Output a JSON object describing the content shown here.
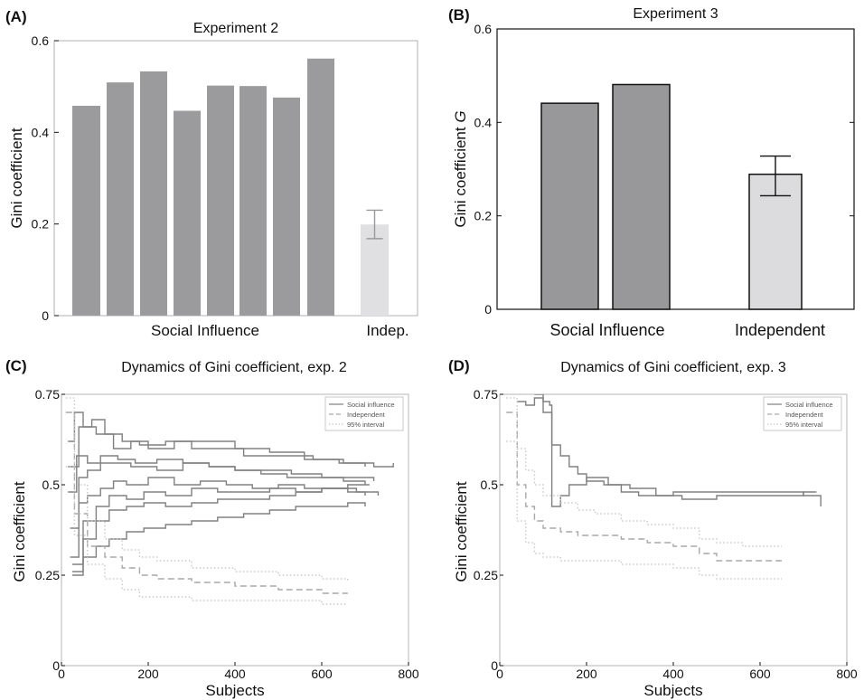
{
  "chart_data": [
    {
      "panel": "(A)",
      "type": "bar",
      "title": "Experiment 2",
      "ylabel": "Gini coefficient",
      "ylim": [
        0,
        0.6
      ],
      "yticks": [
        0,
        0.2,
        0.4,
        0.6
      ],
      "ytick_labels": [
        "0",
        "0.2",
        "0.4",
        "0.6"
      ],
      "group_labels": [
        "Social Influence",
        "Indep."
      ],
      "series": [
        {
          "name": "Social Influence",
          "values": [
            0.458,
            0.509,
            0.533,
            0.447,
            0.502,
            0.501,
            0.476,
            0.561
          ],
          "color": "#9b9b9e"
        },
        {
          "name": "Indep.",
          "values": [
            0.199
          ],
          "error_low": [
            0.168
          ],
          "error_high": [
            0.23
          ],
          "color": "#e0e0e3"
        }
      ],
      "grid": false,
      "frame_color": "#b0b0b0"
    },
    {
      "panel": "(B)",
      "type": "bar",
      "title": "Experiment 3",
      "ylabel": "Gini coefficient G",
      "ylim": [
        0,
        0.6
      ],
      "yticks": [
        0,
        0.2,
        0.4,
        0.6
      ],
      "ytick_labels": [
        "0",
        "0.2",
        "0.4",
        "0.6"
      ],
      "group_labels": [
        "Social Influence",
        "Independent"
      ],
      "series": [
        {
          "name": "Social Influence",
          "values": [
            0.441,
            0.481
          ],
          "color": "#98989b"
        },
        {
          "name": "Independent",
          "values": [
            0.289
          ],
          "error_low": [
            0.243
          ],
          "error_high": [
            0.328
          ],
          "color": "#dcdcdf"
        }
      ],
      "grid": false,
      "frame_color": "#111111"
    },
    {
      "panel": "(C)",
      "type": "line",
      "title": "Dynamics of Gini coefficient, exp. 2",
      "xlabel": "Subjects",
      "ylabel": "Gini coefficient",
      "xlim": [
        0,
        800
      ],
      "ylim": [
        0,
        0.75
      ],
      "xticks": [
        0,
        200,
        400,
        600,
        800
      ],
      "yticks": [
        0,
        0.25,
        0.5,
        0.75
      ],
      "ytick_labels": [
        "0",
        "0.25",
        "0.5",
        "0.75"
      ],
      "legend": [
        "Social influence",
        "Independent",
        "95% interval"
      ],
      "legend_position": "top-right",
      "series": [
        {
          "name": "Social influence",
          "style": "solid",
          "x": [
            15,
            30,
            50,
            80,
            120,
            160,
            200,
            260,
            320,
            400,
            480,
            560,
            640,
            700
          ],
          "y": [
            0.62,
            0.7,
            0.66,
            0.64,
            0.6,
            0.62,
            0.6,
            0.62,
            0.62,
            0.6,
            0.59,
            0.57,
            0.56,
            0.55
          ]
        },
        {
          "name": "Social influence",
          "style": "solid",
          "x": [
            15,
            40,
            70,
            100,
            140,
            180,
            240,
            300,
            360,
            420,
            500,
            580,
            650,
            720,
            765
          ],
          "y": [
            0.55,
            0.66,
            0.68,
            0.64,
            0.62,
            0.61,
            0.62,
            0.6,
            0.6,
            0.58,
            0.58,
            0.57,
            0.56,
            0.55,
            0.56
          ]
        },
        {
          "name": "Social influence",
          "style": "solid",
          "x": [
            15,
            35,
            60,
            90,
            130,
            170,
            220,
            280,
            340,
            400,
            460,
            530,
            600,
            660,
            720
          ],
          "y": [
            0.48,
            0.58,
            0.56,
            0.58,
            0.57,
            0.56,
            0.57,
            0.56,
            0.55,
            0.54,
            0.54,
            0.53,
            0.52,
            0.52,
            0.51
          ]
        },
        {
          "name": "Social influence",
          "style": "solid",
          "x": [
            20,
            40,
            60,
            90,
            120,
            160,
            220,
            280,
            340,
            400,
            460,
            520,
            580,
            650,
            700
          ],
          "y": [
            0.38,
            0.52,
            0.54,
            0.56,
            0.56,
            0.55,
            0.54,
            0.56,
            0.55,
            0.54,
            0.53,
            0.52,
            0.52,
            0.51,
            0.5
          ]
        },
        {
          "name": "Social influence",
          "style": "solid",
          "x": [
            20,
            40,
            60,
            90,
            120,
            150,
            200,
            260,
            320,
            380,
            440,
            500,
            560,
            620,
            680,
            730
          ],
          "y": [
            0.3,
            0.45,
            0.47,
            0.49,
            0.51,
            0.5,
            0.52,
            0.5,
            0.51,
            0.5,
            0.49,
            0.5,
            0.49,
            0.49,
            0.48,
            0.47
          ]
        },
        {
          "name": "Social influence",
          "style": "solid",
          "x": [
            25,
            50,
            80,
            110,
            150,
            190,
            240,
            300,
            360,
            420,
            480,
            540,
            600,
            660,
            700
          ],
          "y": [
            0.28,
            0.4,
            0.44,
            0.47,
            0.46,
            0.48,
            0.47,
            0.49,
            0.48,
            0.48,
            0.49,
            0.48,
            0.49,
            0.48,
            0.47
          ]
        },
        {
          "name": "Social influence",
          "style": "solid",
          "x": [
            25,
            50,
            80,
            110,
            150,
            190,
            240,
            300,
            360,
            420,
            480,
            540,
            600,
            660,
            710
          ],
          "y": [
            0.26,
            0.35,
            0.4,
            0.43,
            0.44,
            0.45,
            0.44,
            0.45,
            0.46,
            0.46,
            0.47,
            0.48,
            0.49,
            0.5,
            0.5
          ]
        },
        {
          "name": "Social influence",
          "style": "solid",
          "x": [
            25,
            50,
            80,
            110,
            150,
            190,
            240,
            300,
            360,
            420,
            480,
            540,
            600,
            660,
            700
          ],
          "y": [
            0.25,
            0.3,
            0.33,
            0.35,
            0.37,
            0.38,
            0.39,
            0.4,
            0.41,
            0.42,
            0.43,
            0.44,
            0.44,
            0.45,
            0.44
          ]
        },
        {
          "name": "Independent",
          "style": "dashed",
          "x": [
            10,
            30,
            60,
            100,
            140,
            180,
            220,
            300,
            400,
            500,
            600,
            660
          ],
          "y": [
            0.7,
            0.42,
            0.33,
            0.3,
            0.27,
            0.25,
            0.24,
            0.23,
            0.22,
            0.21,
            0.2,
            0.2
          ]
        },
        {
          "name": "95% interval",
          "style": "dotted",
          "x": [
            10,
            30,
            60,
            100,
            140,
            180,
            220,
            300,
            400,
            500,
            600,
            660
          ],
          "y": [
            0.74,
            0.5,
            0.4,
            0.35,
            0.32,
            0.3,
            0.29,
            0.27,
            0.26,
            0.25,
            0.24,
            0.23
          ]
        },
        {
          "name": "95% interval",
          "style": "dotted",
          "x": [
            10,
            30,
            60,
            100,
            140,
            180,
            220,
            300,
            400,
            500,
            600,
            660
          ],
          "y": [
            0.55,
            0.36,
            0.28,
            0.24,
            0.21,
            0.19,
            0.19,
            0.18,
            0.18,
            0.18,
            0.17,
            0.17
          ]
        }
      ]
    },
    {
      "panel": "(D)",
      "type": "line",
      "title": "Dynamics of Gini coefficient, exp. 3",
      "xlabel": "Subjects",
      "ylabel": "Gini coefficient",
      "xlim": [
        0,
        800
      ],
      "ylim": [
        0,
        0.75
      ],
      "xticks": [
        0,
        200,
        400,
        600,
        800
      ],
      "yticks": [
        0,
        0.25,
        0.5,
        0.75
      ],
      "ytick_labels": [
        "0",
        "0.25",
        "0.5",
        "0.75"
      ],
      "legend": [
        "Social influence",
        "Independent",
        "95% interval"
      ],
      "legend_position": "top-right",
      "series": [
        {
          "name": "Social influence",
          "style": "solid",
          "x": [
            40,
            60,
            80,
            100,
            115,
            120,
            140,
            160,
            180,
            200,
            240,
            280,
            320,
            400,
            500,
            600,
            700,
            740
          ],
          "y": [
            0.73,
            0.72,
            0.74,
            0.73,
            0.72,
            0.61,
            0.58,
            0.55,
            0.53,
            0.51,
            0.5,
            0.48,
            0.47,
            0.48,
            0.48,
            0.48,
            0.47,
            0.44
          ]
        },
        {
          "name": "Social influence",
          "style": "solid",
          "x": [
            80,
            100,
            120,
            140,
            160,
            200,
            250,
            300,
            360,
            420,
            500,
            600,
            700,
            730
          ],
          "y": [
            0.75,
            0.7,
            0.44,
            0.47,
            0.5,
            0.52,
            0.5,
            0.49,
            0.47,
            0.46,
            0.47,
            0.47,
            0.48,
            0.48
          ]
        },
        {
          "name": "Independent",
          "style": "dashed",
          "x": [
            15,
            40,
            60,
            80,
            100,
            140,
            180,
            220,
            280,
            340,
            400,
            460,
            500,
            560,
            650
          ],
          "y": [
            0.7,
            0.5,
            0.44,
            0.4,
            0.38,
            0.37,
            0.36,
            0.36,
            0.35,
            0.34,
            0.33,
            0.31,
            0.29,
            0.29,
            0.29
          ]
        },
        {
          "name": "95% interval",
          "style": "dotted",
          "x": [
            15,
            40,
            60,
            80,
            100,
            140,
            180,
            220,
            280,
            340,
            400,
            460,
            500,
            560,
            650
          ],
          "y": [
            0.74,
            0.6,
            0.54,
            0.5,
            0.47,
            0.45,
            0.43,
            0.42,
            0.4,
            0.39,
            0.38,
            0.35,
            0.34,
            0.33,
            0.33
          ]
        },
        {
          "name": "95% interval",
          "style": "dotted",
          "x": [
            15,
            40,
            60,
            80,
            100,
            140,
            180,
            220,
            280,
            340,
            400,
            460,
            500,
            560,
            650
          ],
          "y": [
            0.62,
            0.4,
            0.34,
            0.31,
            0.3,
            0.29,
            0.29,
            0.29,
            0.28,
            0.28,
            0.27,
            0.25,
            0.24,
            0.24,
            0.24
          ]
        }
      ]
    }
  ],
  "colors": {
    "social_line": "#808080",
    "independent_line": "#a9a9a9",
    "interval_line": "#c8c8c8",
    "axis": "#111111"
  }
}
